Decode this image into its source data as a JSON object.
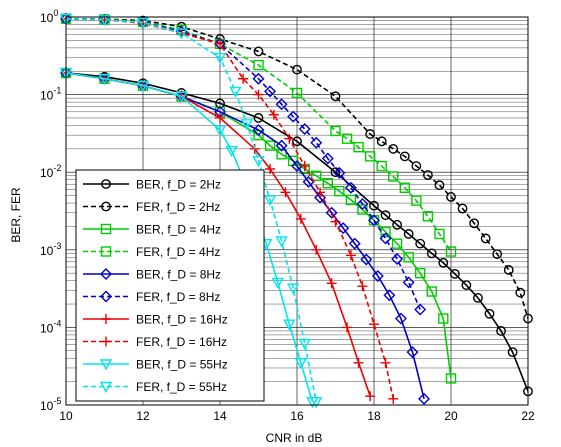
{
  "chart_data": {
    "type": "line",
    "xlabel": "CNR in dB",
    "ylabel": "BER, FER",
    "xlim": [
      10,
      22
    ],
    "ylim": [
      1e-05,
      1
    ],
    "yscale": "log",
    "grid": true,
    "legend_position": "bottom-left",
    "x_ticks": [
      "10",
      "12",
      "14",
      "16",
      "18",
      "20",
      "22"
    ],
    "y_ticks": [
      {
        "base": "10",
        "exp": "0",
        "value": 1
      },
      {
        "base": "10",
        "exp": "-1",
        "value": 0.1
      },
      {
        "base": "10",
        "exp": "-2",
        "value": 0.01
      },
      {
        "base": "10",
        "exp": "-3",
        "value": 0.001
      },
      {
        "base": "10",
        "exp": "-4",
        "value": 0.0001
      },
      {
        "base": "10",
        "exp": "-5",
        "value": 1e-05
      }
    ],
    "series": [
      {
        "name": "BER, f_D = 2Hz",
        "color": "#000000",
        "line": "solid",
        "marker": "circle",
        "x": [
          10,
          11,
          12,
          13,
          14,
          15,
          16,
          17,
          18,
          18.3,
          18.6,
          18.9,
          19.2,
          19.5,
          19.8,
          20.1,
          20.4,
          20.7,
          21,
          21.3,
          21.6,
          22
        ],
        "y": [
          0.19,
          0.17,
          0.14,
          0.105,
          0.077,
          0.05,
          0.025,
          0.01,
          0.0037,
          0.0028,
          0.0021,
          0.0016,
          0.0012,
          0.0009,
          0.00068,
          0.00049,
          0.00035,
          0.00024,
          0.00015,
          9e-05,
          4.8e-05,
          1.5e-05
        ]
      },
      {
        "name": "FER, f_D = 2Hz",
        "color": "#000000",
        "line": "dashed",
        "marker": "circle",
        "x": [
          10,
          11,
          12,
          13,
          14,
          15,
          16,
          17,
          17.9,
          18.2,
          18.5,
          18.8,
          19.1,
          19.4,
          19.7,
          20,
          20.3,
          20.6,
          20.9,
          21.2,
          21.5,
          21.8,
          22
        ],
        "y": [
          0.95,
          0.94,
          0.9,
          0.75,
          0.52,
          0.36,
          0.21,
          0.095,
          0.031,
          0.025,
          0.02,
          0.016,
          0.012,
          0.0092,
          0.0068,
          0.0048,
          0.0034,
          0.0022,
          0.0014,
          0.00088,
          0.00055,
          0.00028,
          0.00013
        ]
      },
      {
        "name": "BER, f_D = 4Hz",
        "color": "#00cc00",
        "line": "solid",
        "marker": "square",
        "x": [
          10,
          11,
          12,
          13,
          14,
          15,
          15.3,
          15.6,
          15.9,
          16.2,
          16.5,
          16.8,
          17.1,
          17.4,
          17.7,
          18,
          18.3,
          18.6,
          18.9,
          19.2,
          19.5,
          19.8,
          20
        ],
        "y": [
          0.19,
          0.16,
          0.13,
          0.095,
          0.06,
          0.03,
          0.022,
          0.017,
          0.014,
          0.011,
          0.009,
          0.0072,
          0.0057,
          0.0044,
          0.0033,
          0.0024,
          0.0017,
          0.0012,
          0.0008,
          0.0005,
          0.00029,
          0.00013,
          2.2e-05
        ]
      },
      {
        "name": "FER, f_D = 4Hz",
        "color": "#00cc00",
        "line": "dashed",
        "marker": "square",
        "x": [
          10,
          11,
          12,
          13,
          14,
          15,
          16,
          17,
          17.3,
          17.6,
          17.9,
          18.2,
          18.5,
          18.8,
          19.1,
          19.4,
          19.7,
          20
        ],
        "y": [
          0.95,
          0.93,
          0.87,
          0.68,
          0.45,
          0.24,
          0.105,
          0.034,
          0.027,
          0.021,
          0.016,
          0.012,
          0.0088,
          0.0063,
          0.0043,
          0.0027,
          0.0016,
          0.00095
        ]
      },
      {
        "name": "BER, f_D = 8Hz",
        "color": "#0000cc",
        "line": "solid",
        "marker": "diamond",
        "x": [
          10,
          11,
          12,
          13,
          14,
          15,
          15.6,
          16,
          16.3,
          16.6,
          16.9,
          17.2,
          17.5,
          17.8,
          18.1,
          18.4,
          18.7,
          19,
          19.3
        ],
        "y": [
          0.19,
          0.16,
          0.13,
          0.095,
          0.06,
          0.035,
          0.022,
          0.012,
          0.0075,
          0.0047,
          0.003,
          0.0019,
          0.0012,
          0.00075,
          0.00046,
          0.00026,
          0.00013,
          4.8e-05,
          1.2e-05
        ]
      },
      {
        "name": "FER, f_D = 8Hz",
        "color": "#0000cc",
        "line": "dashed",
        "marker": "diamond",
        "x": [
          10,
          11,
          12,
          13,
          14,
          15,
          15.3,
          15.6,
          15.9,
          16.2,
          16.5,
          16.8,
          17.1,
          17.4,
          17.7,
          18,
          18.3,
          18.6,
          18.9,
          19.2
        ],
        "y": [
          0.95,
          0.92,
          0.85,
          0.65,
          0.45,
          0.16,
          0.11,
          0.075,
          0.052,
          0.036,
          0.024,
          0.015,
          0.0098,
          0.0063,
          0.0039,
          0.0024,
          0.0014,
          0.00076,
          0.00038,
          0.00017
        ]
      },
      {
        "name": "BER, f_D = 16Hz",
        "color": "#ee0000",
        "line": "solid",
        "marker": "plus",
        "x": [
          10,
          11,
          12,
          13,
          14,
          14.9,
          15.3,
          15.7,
          16.1,
          16.5,
          16.9,
          17.3,
          17.6,
          17.9
        ],
        "y": [
          0.19,
          0.16,
          0.13,
          0.095,
          0.05,
          0.02,
          0.011,
          0.0055,
          0.0025,
          0.001,
          0.00037,
          0.0001,
          3.5e-05,
          1.3e-05
        ]
      },
      {
        "name": "FER, f_D = 16Hz",
        "color": "#ee0000",
        "line": "dashed",
        "marker": "plus",
        "x": [
          10,
          11,
          12,
          13,
          14,
          14.6,
          15,
          15.4,
          15.8,
          16.2,
          16.6,
          17,
          17.4,
          17.7,
          18,
          18.3,
          18.5
        ],
        "y": [
          0.95,
          0.92,
          0.83,
          0.62,
          0.45,
          0.16,
          0.1,
          0.055,
          0.027,
          0.012,
          0.0055,
          0.0023,
          0.00085,
          0.00034,
          0.00011,
          3.5e-05,
          1.2e-05
        ]
      },
      {
        "name": "BER, f_D = 55Hz",
        "color": "#00e5ee",
        "line": "solid",
        "marker": "triangle-down",
        "x": [
          10,
          11,
          12,
          13,
          14,
          14.3,
          14.6,
          14.9,
          15.2,
          15.5,
          15.8,
          16.1,
          16.4
        ],
        "y": [
          0.19,
          0.16,
          0.13,
          0.095,
          0.035,
          0.019,
          0.0085,
          0.0033,
          0.0012,
          0.00038,
          0.00011,
          3.5e-05,
          1.1e-05
        ]
      },
      {
        "name": "FER, f_D = 55Hz",
        "color": "#00e5ee",
        "line": "dashed",
        "marker": "triangle-down",
        "x": [
          10,
          11,
          12,
          13,
          14,
          14.4,
          14.7,
          15,
          15.3,
          15.6,
          15.9,
          16.2,
          16.5
        ],
        "y": [
          0.95,
          0.92,
          0.85,
          0.62,
          0.3,
          0.11,
          0.042,
          0.014,
          0.0044,
          0.0013,
          0.00032,
          6.2e-05,
          1.1e-05
        ]
      }
    ]
  }
}
